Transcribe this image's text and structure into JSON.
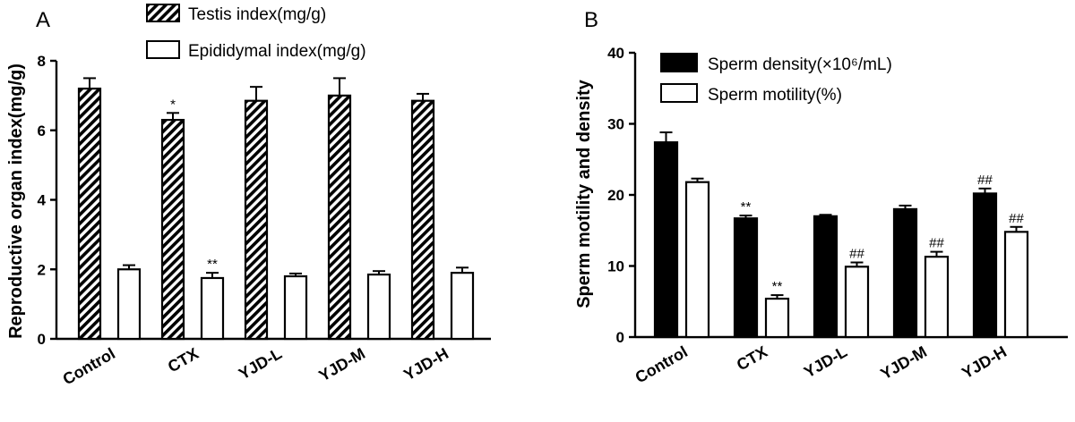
{
  "chart_data": [
    {
      "panel": "A",
      "type": "bar",
      "ylabel": "Reproductive organ index(mg/g)",
      "ylim": [
        0,
        8
      ],
      "yticks": [
        "0",
        "2",
        "4",
        "6",
        "8"
      ],
      "categories": [
        "Control",
        "CTX",
        "YJD-L",
        "YJD-M",
        "YJD-H"
      ],
      "legend_position": "top",
      "series": [
        {
          "name": "Testis index(mg/g)",
          "fill": "hatched",
          "values": [
            7.2,
            6.3,
            6.85,
            7.0,
            6.85
          ],
          "errors": [
            0.3,
            0.2,
            0.4,
            0.5,
            0.2
          ],
          "annotations": [
            "",
            "*",
            "",
            "",
            ""
          ]
        },
        {
          "name": "Epididymal index(mg/g)",
          "fill": "white",
          "values": [
            2.0,
            1.75,
            1.8,
            1.85,
            1.9
          ],
          "errors": [
            0.12,
            0.15,
            0.08,
            0.1,
            0.15
          ],
          "annotations": [
            "",
            "**",
            "",
            "",
            ""
          ]
        }
      ]
    },
    {
      "panel": "B",
      "type": "bar",
      "ylabel": "Sperm motility and density",
      "ylim": [
        0,
        40
      ],
      "yticks": [
        "0",
        "10",
        "20",
        "30",
        "40"
      ],
      "categories": [
        "Control",
        "CTX",
        "YJD-L",
        "YJD-M",
        "YJD-H"
      ],
      "legend_position": "top",
      "series": [
        {
          "name": "Sperm density(×10⁶/mL)",
          "fill": "black",
          "values": [
            27.4,
            16.7,
            17.0,
            18.0,
            20.2
          ],
          "errors": [
            1.4,
            0.4,
            0.2,
            0.5,
            0.7
          ],
          "annotations": [
            "",
            "**",
            "",
            "",
            "##"
          ]
        },
        {
          "name": "Sperm motility(%)",
          "fill": "white",
          "values": [
            21.8,
            5.4,
            9.9,
            11.3,
            14.8
          ],
          "errors": [
            0.5,
            0.5,
            0.6,
            0.7,
            0.7
          ],
          "annotations": [
            "",
            "**",
            "##",
            "##",
            "##"
          ]
        }
      ]
    }
  ]
}
